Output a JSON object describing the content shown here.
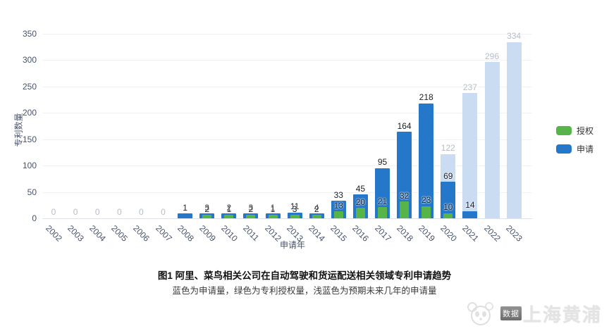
{
  "legend": [
    {
      "label": "授权",
      "color": "#57b449"
    },
    {
      "label": "申请",
      "color": "#2577c9"
    }
  ],
  "caption": {
    "title": "图1 阿里、菜鸟相关公司在自动驾驶和货运配送相关领域专利申请趋势",
    "subtitle": "蓝色为申请量，绿色为专利授权量，浅蓝色为预期未来几年的申请量"
  },
  "watermark": {
    "badge": "数据",
    "text": "上海黄浦",
    "panda_icon": "panda-logo"
  },
  "chart_data": {
    "type": "bar",
    "title": "图1 阿里、菜鸟相关公司在自动驾驶和货运配送相关领域专利申请趋势",
    "xlabel": "申请年",
    "ylabel": "专利数量",
    "ylim": [
      0,
      350
    ],
    "y_ticks": [
      0,
      50,
      100,
      150,
      200,
      250,
      300,
      350
    ],
    "grid": true,
    "legend_position": "right",
    "categories": [
      "2002",
      "2003",
      "2004",
      "2005",
      "2006",
      "2007",
      "2008",
      "2009",
      "2010",
      "2011",
      "2012",
      "2013",
      "2014",
      "2015",
      "2016",
      "2017",
      "2018",
      "2019",
      "2020",
      "2021",
      "2022",
      "2023"
    ],
    "series": [
      {
        "name": "预期申请",
        "role": "expected",
        "color": "#cadcf2",
        "label_color": "#b4bdc9",
        "values": [
          null,
          null,
          null,
          null,
          null,
          null,
          null,
          null,
          null,
          null,
          null,
          null,
          null,
          null,
          null,
          null,
          null,
          null,
          122,
          237,
          296,
          334
        ]
      },
      {
        "name": "申请",
        "role": "apply",
        "color": "#2577c9",
        "label_color": "#1b1e24",
        "values": [
          0,
          0,
          0,
          0,
          0,
          0,
          1,
          3,
          2,
          3,
          1,
          11,
          4,
          33,
          45,
          95,
          164,
          218,
          69,
          14,
          null,
          null
        ]
      },
      {
        "name": "授权",
        "role": "grant",
        "color": "#57b449",
        "label_color": "#1b1e24",
        "values": [
          null,
          null,
          null,
          null,
          null,
          null,
          null,
          2,
          1,
          2,
          1,
          3,
          2,
          13,
          20,
          21,
          32,
          23,
          10,
          null,
          null,
          null
        ]
      }
    ]
  }
}
